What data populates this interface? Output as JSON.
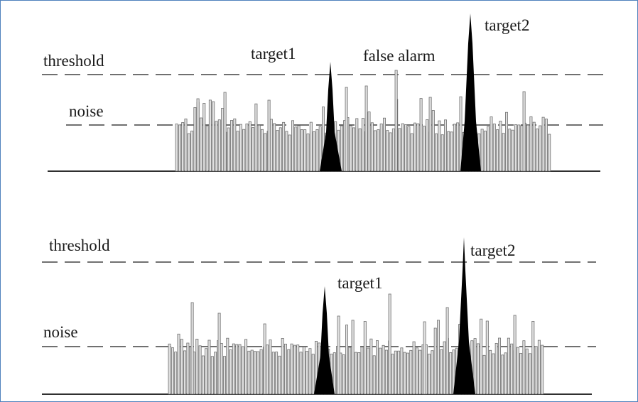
{
  "panels": [
    {
      "id": "top",
      "labels": {
        "threshold": "threshold",
        "noise": "noise",
        "target1": "target1",
        "target2": "target2",
        "false_alarm": "false alarm"
      }
    },
    {
      "id": "bottom",
      "labels": {
        "threshold": "threshold",
        "noise": "noise",
        "target1": "target1",
        "target2": "target2"
      }
    }
  ],
  "colors": {
    "frame_border": "#4f81bd",
    "bar_fill": "#e0e0e0",
    "bar_stroke": "#707070",
    "target_fill": "#000000",
    "dash_line": "#404040",
    "baseline": "#303030"
  }
}
